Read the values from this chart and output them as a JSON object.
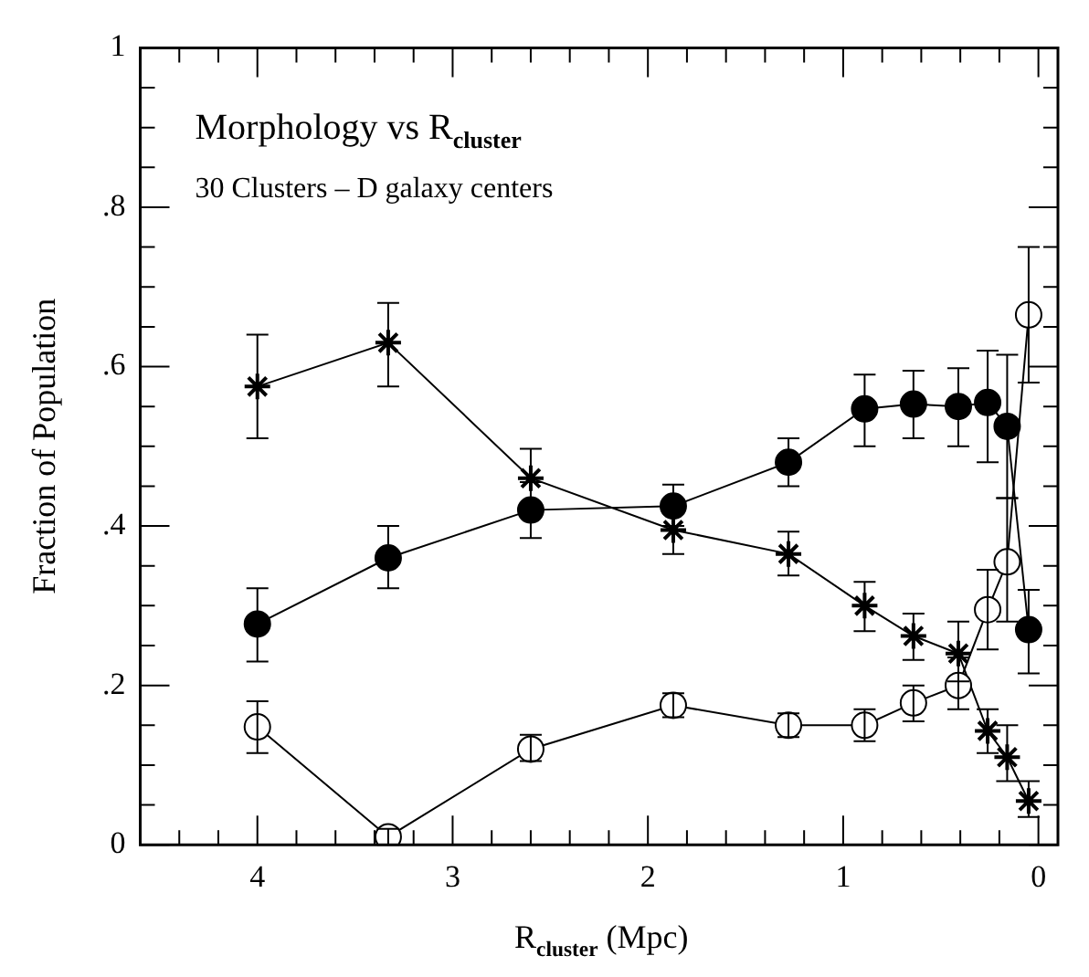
{
  "chart_data": {
    "type": "line",
    "title": "Morphology vs R$_{cluster}$",
    "subtitle": "30 Clusters – D galaxy centers",
    "xlabel": "R$_{cluster}$ (Mpc)",
    "ylabel": "Fraction of Population",
    "x": [
      4.0,
      3.33,
      2.6,
      1.87,
      1.28,
      0.89,
      0.64,
      0.41,
      0.26,
      0.16,
      0.05
    ],
    "series": [
      {
        "color": "#000000",
        "marker": "circle",
        "values": [
          0.277,
          0.36,
          0.42,
          0.425,
          0.48,
          0.547,
          0.553,
          0.55,
          0.555,
          0.525,
          0.27
        ],
        "errors": [
          [
            0.23,
            0.322
          ],
          [
            0.322,
            0.4
          ],
          [
            0.385,
            0.455
          ],
          [
            0.4,
            0.452
          ],
          [
            0.45,
            0.51
          ],
          [
            0.5,
            0.59
          ],
          [
            0.51,
            0.595
          ],
          [
            0.5,
            0.598
          ],
          [
            0.48,
            0.62
          ],
          [
            0.435,
            0.615
          ],
          [
            0.215,
            0.32
          ]
        ]
      },
      {
        "color": "#000000",
        "marker": "circle",
        "values": [
          0.148,
          0.01,
          0.12,
          0.175,
          0.15,
          0.15,
          0.178,
          0.2,
          0.295,
          0.355,
          0.665
        ],
        "errors": [
          [
            0.115,
            0.18
          ],
          [
            0,
            0.02
          ],
          [
            0.105,
            0.138
          ],
          [
            0.16,
            0.19
          ],
          [
            0.135,
            0.165
          ],
          [
            0.13,
            0.17
          ],
          [
            0.155,
            0.2
          ],
          [
            0.17,
            0.235
          ],
          [
            0.245,
            0.345
          ],
          [
            0.28,
            0.435
          ],
          [
            0.58,
            0.75
          ]
        ]
      },
      {
        "color": "#000000",
        "marker": "cross",
        "values": [
          0.575,
          0.63,
          0.46,
          0.395,
          0.365,
          0.3,
          0.262,
          0.24,
          0.143,
          0.11,
          0.055
        ],
        "errors": [
          [
            0.51,
            0.64
          ],
          [
            0.575,
            0.68
          ],
          [
            0.46,
            0.497
          ],
          [
            0.365,
            0.395
          ],
          [
            0.338,
            0.393
          ],
          [
            0.268,
            0.33
          ],
          [
            0.232,
            0.29
          ],
          [
            0.205,
            0.28
          ],
          [
            0.115,
            0.17
          ],
          [
            0.08,
            0.15
          ],
          [
            0.035,
            0.08
          ]
        ]
      }
    ],
    "xlim": [
      4.6,
      -0.1
    ],
    "xticks": [
      {
        "value": 4.4,
        "label": null
      },
      {
        "value": 4.2,
        "label": null
      },
      4,
      {
        "value": 3.8,
        "label": null
      },
      {
        "value": 3.6,
        "label": null
      },
      {
        "value": 3.4,
        "label": null
      },
      {
        "value": 3.2,
        "label": null
      },
      3,
      {
        "value": 2.8,
        "label": null
      },
      {
        "value": 2.6,
        "label": null
      },
      {
        "value": 2.4,
        "label": null
      },
      {
        "value": 2.2,
        "label": null
      },
      2,
      {
        "value": 1.8,
        "label": null
      },
      {
        "value": 1.6,
        "label": null
      },
      {
        "value": 1.4,
        "label": null
      },
      {
        "value": 1.2,
        "label": null
      },
      1,
      {
        "value": 0.8,
        "label": null
      },
      {
        "value": 0.6,
        "label": null
      },
      {
        "value": 0.4,
        "label": null
      },
      {
        "value": 0.2,
        "label": null
      },
      0
    ],
    "ylim": [
      0,
      1
    ],
    "yticks": [
      0,
      {
        "value": 0.05,
        "label": null
      },
      {
        "value": 0.1,
        "label": null
      },
      {
        "value": 0.15,
        "label": null
      },
      {
        "value": 0.2,
        "label": ".2"
      },
      {
        "value": 0.25,
        "label": null
      },
      {
        "value": 0.3,
        "label": null
      },
      {
        "value": 0.35,
        "label": null
      },
      {
        "value": 0.4,
        "label": ".4"
      },
      {
        "value": 0.45,
        "label": null
      },
      {
        "value": 0.5,
        "label": null
      },
      {
        "value": 0.55,
        "label": null
      },
      {
        "value": 0.6,
        "label": ".6"
      },
      {
        "value": 0.65,
        "label": null
      },
      {
        "value": 0.7,
        "label": null
      },
      {
        "value": 0.75,
        "label": null
      },
      {
        "value": 0.8,
        "label": ".8"
      },
      {
        "value": 0.85,
        "label": null
      },
      {
        "value": 0.9,
        "label": null
      },
      {
        "value": 0.95,
        "label": null
      },
      1
    ],
    "grid": false,
    "legend": false
  }
}
